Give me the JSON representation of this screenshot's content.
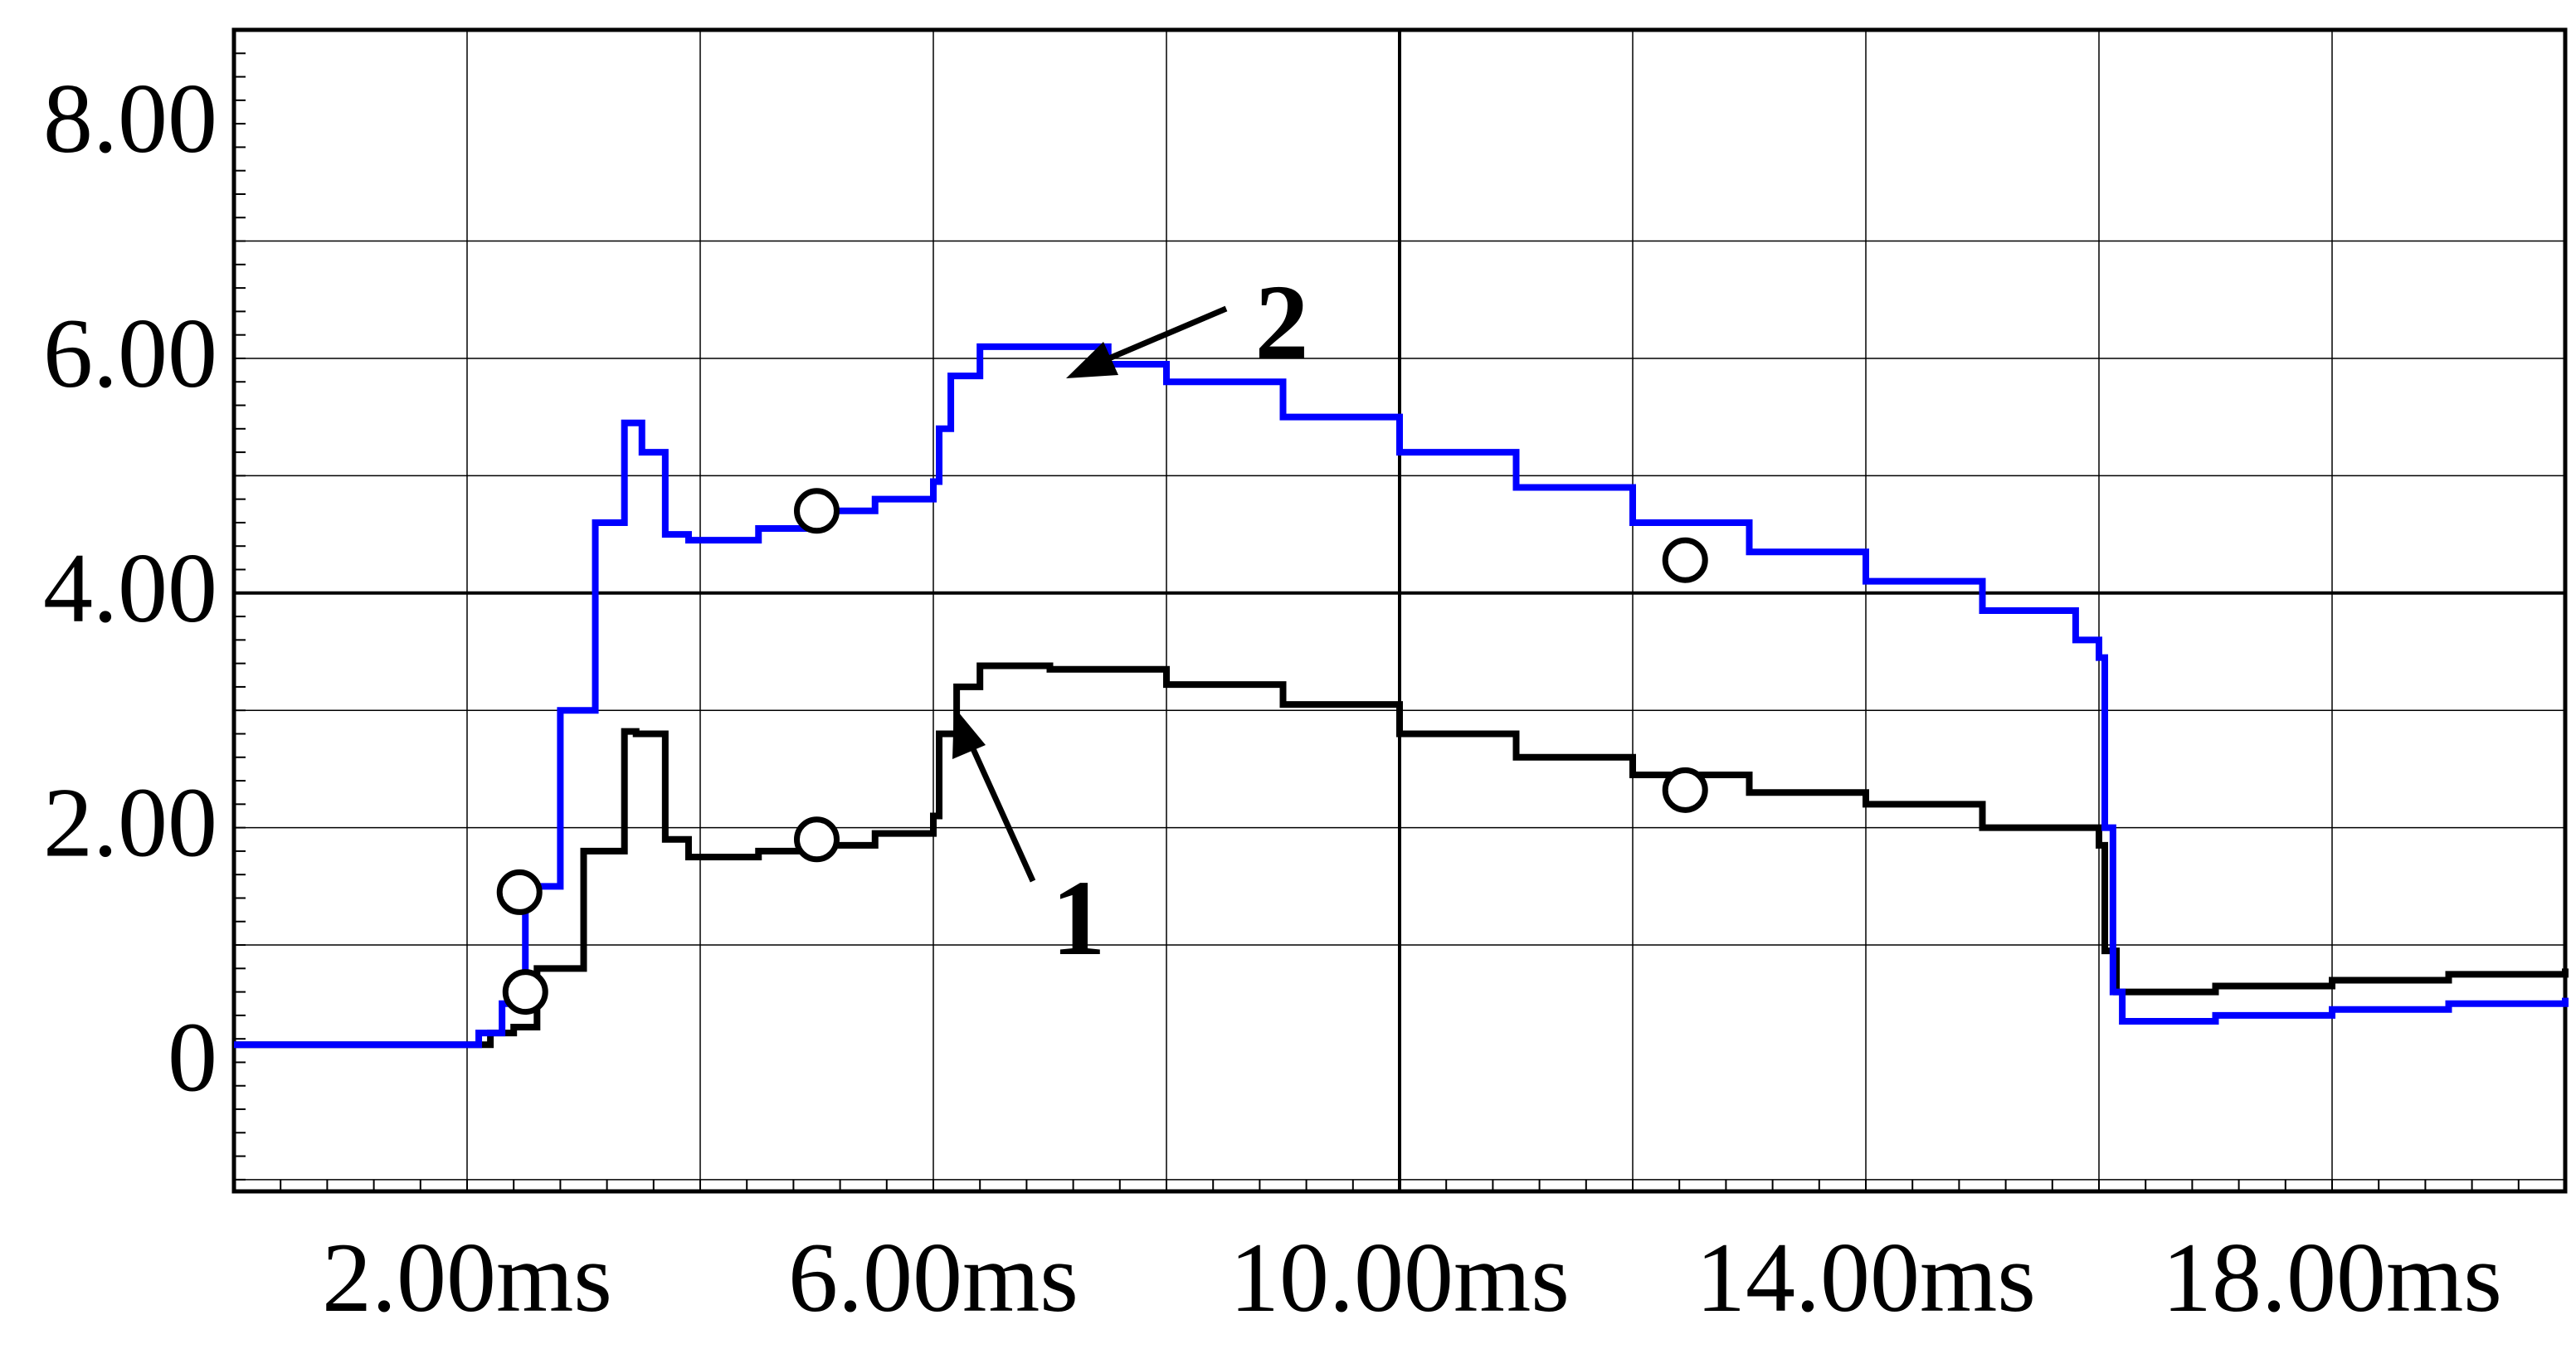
{
  "chart_data": {
    "type": "line",
    "title": "",
    "xlabel": "",
    "ylabel": "",
    "xlim": [
      0,
      20
    ],
    "ylim": [
      -1.1,
      8.8
    ],
    "grid": true,
    "x_ticks": [
      {
        "value": 2,
        "label": "2.00ms"
      },
      {
        "value": 6,
        "label": "6.00ms"
      },
      {
        "value": 10,
        "label": "10.00ms"
      },
      {
        "value": 14,
        "label": "14.00ms"
      },
      {
        "value": 18,
        "label": "18.00ms"
      }
    ],
    "y_ticks": [
      {
        "value": 0,
        "label": "0"
      },
      {
        "value": 2,
        "label": "2.00"
      },
      {
        "value": 4,
        "label": "4.00"
      },
      {
        "value": 6,
        "label": "6.00"
      },
      {
        "value": 8,
        "label": "8.00"
      }
    ],
    "series": [
      {
        "color": "#000000",
        "label": "1",
        "points": [
          [
            0,
            0.15
          ],
          [
            1.8,
            0.15
          ],
          [
            2.2,
            0.25
          ],
          [
            2.4,
            0.3
          ],
          [
            2.6,
            0.8
          ],
          [
            3.0,
            1.8
          ],
          [
            3.35,
            2.82
          ],
          [
            3.45,
            2.8
          ],
          [
            3.7,
            1.9
          ],
          [
            3.9,
            1.75
          ],
          [
            4.5,
            1.8
          ],
          [
            5.0,
            1.85
          ],
          [
            5.5,
            1.95
          ],
          [
            6.0,
            2.1
          ],
          [
            6.05,
            2.8
          ],
          [
            6.2,
            3.2
          ],
          [
            6.4,
            3.38
          ],
          [
            7.0,
            3.35
          ],
          [
            8.0,
            3.22
          ],
          [
            9.0,
            3.05
          ],
          [
            10.0,
            2.8
          ],
          [
            11.0,
            2.6
          ],
          [
            12.0,
            2.45
          ],
          [
            13.0,
            2.3
          ],
          [
            14.0,
            2.2
          ],
          [
            15.0,
            2.0
          ],
          [
            16.0,
            1.85
          ],
          [
            16.05,
            0.95
          ],
          [
            16.15,
            0.6
          ],
          [
            17.0,
            0.65
          ],
          [
            18.0,
            0.7
          ],
          [
            19.0,
            0.75
          ],
          [
            20.0,
            0.8
          ]
        ],
        "markers": [
          [
            2.5,
            0.6
          ],
          [
            5.0,
            1.9
          ],
          [
            12.45,
            2.32
          ]
        ]
      },
      {
        "color": "#0000ff",
        "label": "2",
        "points": [
          [
            0,
            0.15
          ],
          [
            1.8,
            0.15
          ],
          [
            2.1,
            0.25
          ],
          [
            2.3,
            0.5
          ],
          [
            2.5,
            1.5
          ],
          [
            2.8,
            3.0
          ],
          [
            3.1,
            4.6
          ],
          [
            3.35,
            5.45
          ],
          [
            3.5,
            5.2
          ],
          [
            3.7,
            4.5
          ],
          [
            3.9,
            4.45
          ],
          [
            4.5,
            4.55
          ],
          [
            5.0,
            4.7
          ],
          [
            5.5,
            4.8
          ],
          [
            6.0,
            4.95
          ],
          [
            6.05,
            5.4
          ],
          [
            6.15,
            5.85
          ],
          [
            6.4,
            6.1
          ],
          [
            6.8,
            6.1
          ],
          [
            7.5,
            5.95
          ],
          [
            8.0,
            5.8
          ],
          [
            9.0,
            5.5
          ],
          [
            10.0,
            5.2
          ],
          [
            11.0,
            4.9
          ],
          [
            12.0,
            4.6
          ],
          [
            13.0,
            4.35
          ],
          [
            14.0,
            4.1
          ],
          [
            15.0,
            3.85
          ],
          [
            15.8,
            3.6
          ],
          [
            16.0,
            3.45
          ],
          [
            16.05,
            2.0
          ],
          [
            16.12,
            0.6
          ],
          [
            16.2,
            0.35
          ],
          [
            17.0,
            0.4
          ],
          [
            18.0,
            0.45
          ],
          [
            19.0,
            0.5
          ],
          [
            20.0,
            0.55
          ]
        ],
        "markers": [
          [
            2.45,
            1.45
          ],
          [
            5.0,
            4.7
          ],
          [
            12.45,
            4.28
          ]
        ]
      }
    ],
    "annotations": [
      {
        "text": "1"
      },
      {
        "text": "2"
      }
    ]
  }
}
